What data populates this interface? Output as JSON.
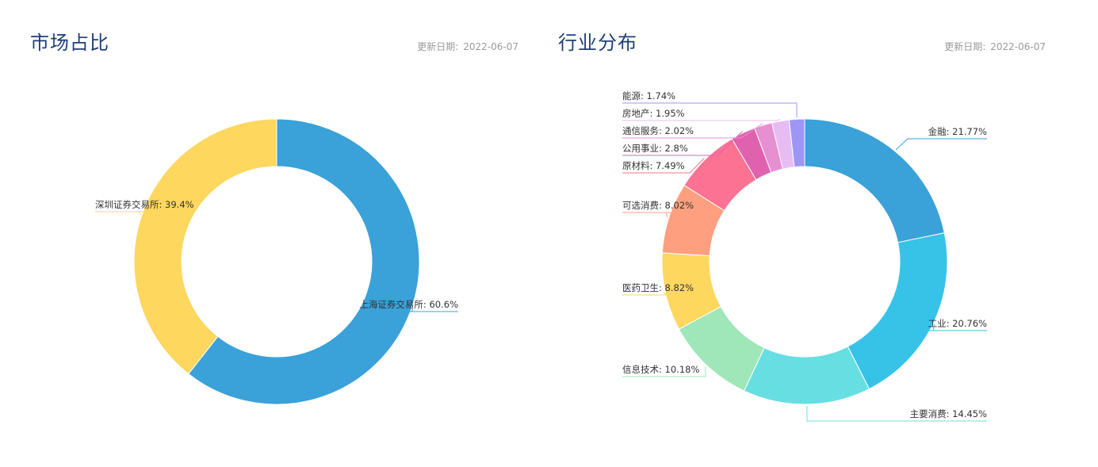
{
  "panels": [
    {
      "title": "市场占比",
      "update_label": "更新日期:",
      "update_date": "2022-06-07"
    },
    {
      "title": "行业分布",
      "update_label": "更新日期:",
      "update_date": "2022-06-07"
    }
  ],
  "chart_data": [
    {
      "type": "pie",
      "variant": "donut",
      "title": "市场占比",
      "slices": [
        {
          "name": "上海证券交易所",
          "value": 60.6,
          "color": "#3aa1d9"
        },
        {
          "name": "深圳证券交易所",
          "value": 39.4,
          "color": "#fdd75e"
        }
      ]
    },
    {
      "type": "pie",
      "variant": "donut",
      "title": "行业分布",
      "slices": [
        {
          "name": "金融",
          "value": 21.77,
          "color": "#3aa1d9"
        },
        {
          "name": "工业",
          "value": 20.76,
          "color": "#36c3e7"
        },
        {
          "name": "主要消费",
          "value": 14.45,
          "color": "#67dfe2"
        },
        {
          "name": "信息技术",
          "value": 10.18,
          "color": "#9fe6b8"
        },
        {
          "name": "医药卫生",
          "value": 8.82,
          "color": "#fdd75e"
        },
        {
          "name": "可选消费",
          "value": 8.02,
          "color": "#fe9f7f"
        },
        {
          "name": "原材料",
          "value": 7.49,
          "color": "#fb7293"
        },
        {
          "name": "公用事业",
          "value": 2.8,
          "color": "#e062ae"
        },
        {
          "name": "通信服务",
          "value": 2.02,
          "color": "#e690d1"
        },
        {
          "name": "房地产",
          "value": 1.95,
          "color": "#e7bcf3"
        },
        {
          "name": "能源",
          "value": 1.74,
          "color": "#9d96f5"
        }
      ]
    }
  ]
}
